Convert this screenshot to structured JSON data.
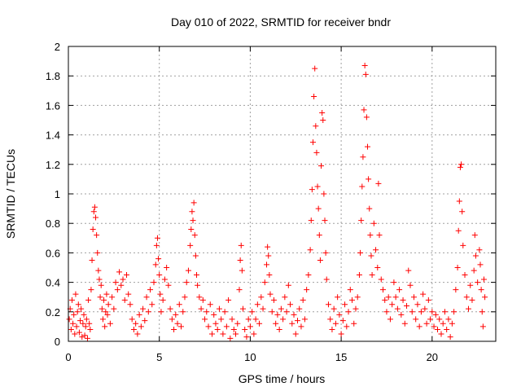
{
  "chart_data": {
    "type": "scatter",
    "title": "Day 010 of 2022, SRMTID for receiver bndr",
    "xlabel": "GPS time / hours",
    "ylabel": "SRMTID / TECUs",
    "xlim": [
      0,
      23.5
    ],
    "ylim": [
      0,
      2
    ],
    "xticks": [
      0,
      5,
      10,
      15,
      20
    ],
    "xtick_labels": [
      "0",
      "5",
      "10",
      "15",
      "20"
    ],
    "yticks": [
      0,
      0.2,
      0.4,
      0.6,
      0.8,
      1.0,
      1.2,
      1.4,
      1.6,
      1.8,
      2.0
    ],
    "ytick_labels": [
      "0",
      "0.2",
      "0.4",
      "0.6",
      "0.8",
      "1",
      "1.2",
      "1.4",
      "1.6",
      "1.8",
      "2"
    ],
    "grid": true,
    "marker": "+",
    "color": "#ff0000",
    "series": [
      {
        "name": "SRMTID",
        "points": [
          [
            0.05,
            0.15
          ],
          [
            0.1,
            0.22
          ],
          [
            0.15,
            0.08
          ],
          [
            0.2,
            0.28
          ],
          [
            0.25,
            0.12
          ],
          [
            0.3,
            0.18
          ],
          [
            0.35,
            0.05
          ],
          [
            0.4,
            0.32
          ],
          [
            0.45,
            0.1
          ],
          [
            0.5,
            0.2
          ],
          [
            0.55,
            0.25
          ],
          [
            0.6,
            0.06
          ],
          [
            0.65,
            0.14
          ],
          [
            0.7,
            0.22
          ],
          [
            0.75,
            0.03
          ],
          [
            0.8,
            0.12
          ],
          [
            0.85,
            0.18
          ],
          [
            0.9,
            0.04
          ],
          [
            0.95,
            0.1
          ],
          [
            1.0,
            0.15
          ],
          [
            1.05,
            0.02
          ],
          [
            1.1,
            0.28
          ],
          [
            1.15,
            0.12
          ],
          [
            1.2,
            0.08
          ],
          [
            1.25,
            0.35
          ],
          [
            1.3,
            0.55
          ],
          [
            1.35,
            0.76
          ],
          [
            1.4,
            0.88
          ],
          [
            1.45,
            0.91
          ],
          [
            1.5,
            0.84
          ],
          [
            1.55,
            0.72
          ],
          [
            1.6,
            0.6
          ],
          [
            1.65,
            0.48
          ],
          [
            1.7,
            0.42
          ],
          [
            1.75,
            0.3
          ],
          [
            1.8,
            0.38
          ],
          [
            1.85,
            0.22
          ],
          [
            1.9,
            0.15
          ],
          [
            1.95,
            0.28
          ],
          [
            2.0,
            0.1
          ],
          [
            2.05,
            0.2
          ],
          [
            2.1,
            0.32
          ],
          [
            2.15,
            0.18
          ],
          [
            2.2,
            0.25
          ],
          [
            2.3,
            0.12
          ],
          [
            2.4,
            0.3
          ],
          [
            2.5,
            0.22
          ],
          [
            2.6,
            0.4
          ],
          [
            2.7,
            0.35
          ],
          [
            2.8,
            0.47
          ],
          [
            2.9,
            0.38
          ],
          [
            3.0,
            0.42
          ],
          [
            3.1,
            0.28
          ],
          [
            3.2,
            0.45
          ],
          [
            3.3,
            0.32
          ],
          [
            3.4,
            0.25
          ],
          [
            3.5,
            0.15
          ],
          [
            3.6,
            0.08
          ],
          [
            3.7,
            0.12
          ],
          [
            3.8,
            0.05
          ],
          [
            3.9,
            0.18
          ],
          [
            4.0,
            0.1
          ],
          [
            4.1,
            0.22
          ],
          [
            4.2,
            0.14
          ],
          [
            4.3,
            0.3
          ],
          [
            4.4,
            0.2
          ],
          [
            4.5,
            0.35
          ],
          [
            4.6,
            0.25
          ],
          [
            4.7,
            0.4
          ],
          [
            4.8,
            0.52
          ],
          [
            4.85,
            0.65
          ],
          [
            4.9,
            0.7
          ],
          [
            4.95,
            0.56
          ],
          [
            5.0,
            0.45
          ],
          [
            5.05,
            0.32
          ],
          [
            5.1,
            0.2
          ],
          [
            5.2,
            0.28
          ],
          [
            5.3,
            0.42
          ],
          [
            5.4,
            0.5
          ],
          [
            5.5,
            0.38
          ],
          [
            5.6,
            0.22
          ],
          [
            5.7,
            0.15
          ],
          [
            5.8,
            0.08
          ],
          [
            5.9,
            0.18
          ],
          [
            6.0,
            0.12
          ],
          [
            6.1,
            0.25
          ],
          [
            6.2,
            0.1
          ],
          [
            6.3,
            0.2
          ],
          [
            6.4,
            0.3
          ],
          [
            6.5,
            0.4
          ],
          [
            6.6,
            0.48
          ],
          [
            6.7,
            0.65
          ],
          [
            6.75,
            0.76
          ],
          [
            6.8,
            0.88
          ],
          [
            6.85,
            0.82
          ],
          [
            6.9,
            0.94
          ],
          [
            6.95,
            0.72
          ],
          [
            7.0,
            0.58
          ],
          [
            7.05,
            0.45
          ],
          [
            7.1,
            0.38
          ],
          [
            7.2,
            0.3
          ],
          [
            7.3,
            0.22
          ],
          [
            7.4,
            0.28
          ],
          [
            7.5,
            0.15
          ],
          [
            7.6,
            0.2
          ],
          [
            7.7,
            0.1
          ],
          [
            7.8,
            0.25
          ],
          [
            7.9,
            0.05
          ],
          [
            8.0,
            0.18
          ],
          [
            8.1,
            0.12
          ],
          [
            8.2,
            0.08
          ],
          [
            8.3,
            0.22
          ],
          [
            8.4,
            0.15
          ],
          [
            8.5,
            0.05
          ],
          [
            8.6,
            0.2
          ],
          [
            8.7,
            0.1
          ],
          [
            8.8,
            0.28
          ],
          [
            8.9,
            0.02
          ],
          [
            9.0,
            0.15
          ],
          [
            9.1,
            0.08
          ],
          [
            9.2,
            0.05
          ],
          [
            9.3,
            0.12
          ],
          [
            9.4,
            0.35
          ],
          [
            9.45,
            0.55
          ],
          [
            9.5,
            0.65
          ],
          [
            9.55,
            0.48
          ],
          [
            9.6,
            0.22
          ],
          [
            9.7,
            0.08
          ],
          [
            9.8,
            0.03
          ],
          [
            9.9,
            0.15
          ],
          [
            10.0,
            0.1
          ],
          [
            10.1,
            0.2
          ],
          [
            10.2,
            0.05
          ],
          [
            10.3,
            0.15
          ],
          [
            10.4,
            0.25
          ],
          [
            10.5,
            0.12
          ],
          [
            10.6,
            0.3
          ],
          [
            10.7,
            0.22
          ],
          [
            10.8,
            0.4
          ],
          [
            10.9,
            0.52
          ],
          [
            10.95,
            0.64
          ],
          [
            11.0,
            0.58
          ],
          [
            11.05,
            0.45
          ],
          [
            11.1,
            0.32
          ],
          [
            11.2,
            0.2
          ],
          [
            11.3,
            0.28
          ],
          [
            11.4,
            0.12
          ],
          [
            11.5,
            0.18
          ],
          [
            11.6,
            0.08
          ],
          [
            11.7,
            0.22
          ],
          [
            11.8,
            0.15
          ],
          [
            11.9,
            0.3
          ],
          [
            12.0,
            0.2
          ],
          [
            12.1,
            0.38
          ],
          [
            12.2,
            0.25
          ],
          [
            12.3,
            0.12
          ],
          [
            12.4,
            0.18
          ],
          [
            12.5,
            0.05
          ],
          [
            12.6,
            0.14
          ],
          [
            12.7,
            0.22
          ],
          [
            12.8,
            0.1
          ],
          [
            12.9,
            0.28
          ],
          [
            13.0,
            0.15
          ],
          [
            13.1,
            0.35
          ],
          [
            13.2,
            0.45
          ],
          [
            13.3,
            0.62
          ],
          [
            13.35,
            0.82
          ],
          [
            13.4,
            1.03
          ],
          [
            13.45,
            1.35
          ],
          [
            13.5,
            1.66
          ],
          [
            13.55,
            1.85
          ],
          [
            13.6,
            1.46
          ],
          [
            13.65,
            1.28
          ],
          [
            13.7,
            1.05
          ],
          [
            13.75,
            0.9
          ],
          [
            13.8,
            0.72
          ],
          [
            13.85,
            0.55
          ],
          [
            13.9,
            1.19
          ],
          [
            13.95,
            1.55
          ],
          [
            14.0,
            1.5
          ],
          [
            14.05,
            1.0
          ],
          [
            14.1,
            0.82
          ],
          [
            14.15,
            0.6
          ],
          [
            14.2,
            0.42
          ],
          [
            14.3,
            0.25
          ],
          [
            14.4,
            0.15
          ],
          [
            14.5,
            0.08
          ],
          [
            14.6,
            0.22
          ],
          [
            14.7,
            0.12
          ],
          [
            14.8,
            0.3
          ],
          [
            14.9,
            0.18
          ],
          [
            15.0,
            0.05
          ],
          [
            15.1,
            0.14
          ],
          [
            15.2,
            0.25
          ],
          [
            15.3,
            0.1
          ],
          [
            15.4,
            0.2
          ],
          [
            15.5,
            0.35
          ],
          [
            15.6,
            0.28
          ],
          [
            15.7,
            0.12
          ],
          [
            15.8,
            0.22
          ],
          [
            15.9,
            0.3
          ],
          [
            16.0,
            0.45
          ],
          [
            16.05,
            0.6
          ],
          [
            16.1,
            0.82
          ],
          [
            16.15,
            1.05
          ],
          [
            16.2,
            1.25
          ],
          [
            16.25,
            1.57
          ],
          [
            16.3,
            1.87
          ],
          [
            16.35,
            1.81
          ],
          [
            16.4,
            1.52
          ],
          [
            16.45,
            1.32
          ],
          [
            16.5,
            1.1
          ],
          [
            16.55,
            0.9
          ],
          [
            16.6,
            0.72
          ],
          [
            16.65,
            0.58
          ],
          [
            16.7,
            0.45
          ],
          [
            16.8,
            0.8
          ],
          [
            16.9,
            0.62
          ],
          [
            17.0,
            0.5
          ],
          [
            17.05,
            1.07
          ],
          [
            17.1,
            0.72
          ],
          [
            17.2,
            0.42
          ],
          [
            17.3,
            0.35
          ],
          [
            17.4,
            0.28
          ],
          [
            17.5,
            0.2
          ],
          [
            17.6,
            0.3
          ],
          [
            17.7,
            0.15
          ],
          [
            17.8,
            0.25
          ],
          [
            17.9,
            0.4
          ],
          [
            18.0,
            0.3
          ],
          [
            18.1,
            0.22
          ],
          [
            18.2,
            0.35
          ],
          [
            18.3,
            0.18
          ],
          [
            18.4,
            0.28
          ],
          [
            18.5,
            0.12
          ],
          [
            18.6,
            0.24
          ],
          [
            18.7,
            0.48
          ],
          [
            18.8,
            0.38
          ],
          [
            18.9,
            0.2
          ],
          [
            19.0,
            0.3
          ],
          [
            19.1,
            0.15
          ],
          [
            19.2,
            0.25
          ],
          [
            19.3,
            0.1
          ],
          [
            19.4,
            0.2
          ],
          [
            19.5,
            0.32
          ],
          [
            19.6,
            0.22
          ],
          [
            19.7,
            0.12
          ],
          [
            19.8,
            0.28
          ],
          [
            19.9,
            0.15
          ],
          [
            20.0,
            0.2
          ],
          [
            20.1,
            0.1
          ],
          [
            20.2,
            0.18
          ],
          [
            20.3,
            0.08
          ],
          [
            20.4,
            0.15
          ],
          [
            20.5,
            0.05
          ],
          [
            20.6,
            0.12
          ],
          [
            20.7,
            0.2
          ],
          [
            20.8,
            0.08
          ],
          [
            20.9,
            0.15
          ],
          [
            21.0,
            0.03
          ],
          [
            21.1,
            0.12
          ],
          [
            21.2,
            0.2
          ],
          [
            21.3,
            0.35
          ],
          [
            21.4,
            0.5
          ],
          [
            21.45,
            0.75
          ],
          [
            21.5,
            0.95
          ],
          [
            21.55,
            1.18
          ],
          [
            21.6,
            1.2
          ],
          [
            21.65,
            0.88
          ],
          [
            21.7,
            0.65
          ],
          [
            21.8,
            0.45
          ],
          [
            21.9,
            0.3
          ],
          [
            22.0,
            0.22
          ],
          [
            22.1,
            0.38
          ],
          [
            22.2,
            0.28
          ],
          [
            22.3,
            0.48
          ],
          [
            22.35,
            0.72
          ],
          [
            22.4,
            0.58
          ],
          [
            22.5,
            0.4
          ],
          [
            22.6,
            0.62
          ],
          [
            22.65,
            0.52
          ],
          [
            22.7,
            0.35
          ],
          [
            22.75,
            0.2
          ],
          [
            22.8,
            0.1
          ],
          [
            22.85,
            0.42
          ],
          [
            22.9,
            0.3
          ]
        ]
      }
    ]
  }
}
